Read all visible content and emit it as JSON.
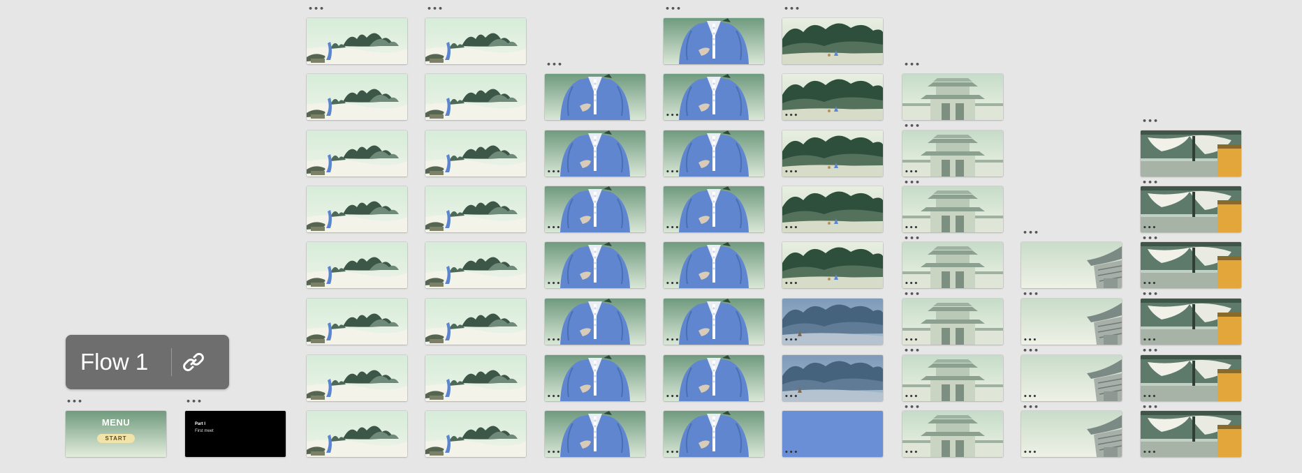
{
  "flow_label": {
    "label": "Flow 1",
    "link_icon": "link-icon"
  },
  "menu_frame": {
    "title": "MENU",
    "start_label": "START"
  },
  "dark_frame": {
    "line1": "Part I",
    "line2": "First meet"
  },
  "more_glyph": "•••",
  "scene_types": {
    "1": "landscape-river",
    "2": "landscape-river",
    "3": "robed-figure",
    "4": "robed-figure",
    "5": "mountain-forest",
    "6": "temple-gate",
    "7": "temple-roof-corner",
    "8": "palace-curtain"
  },
  "column_scenes": [
    [
      "landscape-river",
      "landscape-river",
      "landscape-river",
      "landscape-river",
      "landscape-river",
      "landscape-river",
      "landscape-river",
      "landscape-river"
    ],
    [
      "landscape-river",
      "landscape-river",
      "landscape-river",
      "landscape-river",
      "landscape-river",
      "landscape-river",
      "landscape-river",
      "landscape-river"
    ],
    [
      "robed-figure",
      "robed-figure",
      "robed-figure",
      "robed-figure",
      "robed-figure",
      "robed-figure",
      "robed-figure"
    ],
    [
      "robed-figure",
      "robed-figure",
      "robed-figure",
      "robed-figure",
      "robed-figure",
      "robed-figure",
      "robed-figure",
      "robed-figure"
    ],
    [
      "mountain-forest",
      "mountain-forest",
      "mountain-forest",
      "mountain-forest",
      "mountain-forest",
      "mountain-forest-night",
      "mountain-forest-night",
      "solid-blue"
    ],
    [
      "temple-gate",
      "temple-gate",
      "temple-gate",
      "temple-gate",
      "temple-gate",
      "temple-gate",
      "temple-gate"
    ],
    [
      "temple-roof-corner",
      "temple-roof-corner",
      "temple-roof-corner",
      "temple-roof-corner"
    ],
    [
      "palace-curtain",
      "palace-curtain",
      "palace-curtain",
      "palace-curtain",
      "palace-curtain",
      "palace-curtain"
    ]
  ],
  "colors": {
    "canvas_bg": "#e6e6e6",
    "robe_blue": "#5f86cf",
    "solid_blue": "#6b8fd6",
    "mint_sky": "#cfe6d6",
    "ink_green": "#2f4a3a",
    "chip_bg": "#6e6e6e"
  }
}
